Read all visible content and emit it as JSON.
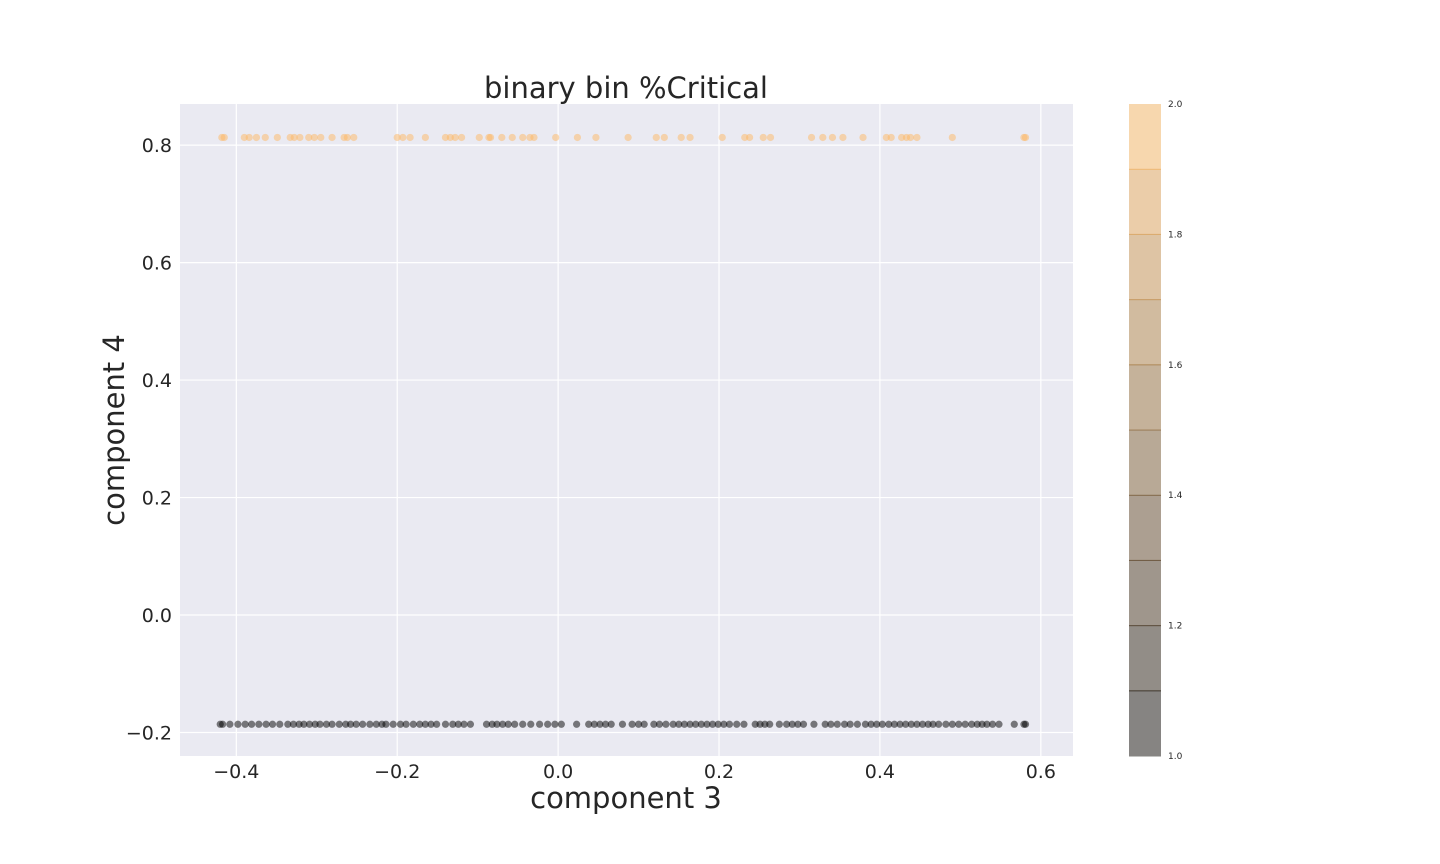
{
  "chart_data": {
    "type": "scatter",
    "title": "binary bin %Critical",
    "xlabel": "component 3",
    "ylabel": "component 4",
    "xlim": [
      -0.47,
      0.64
    ],
    "ylim": [
      -0.24,
      0.87
    ],
    "xticks": [
      -0.4,
      -0.2,
      0.0,
      0.2,
      0.4,
      0.6
    ],
    "xtick_labels": [
      "−0.4",
      "−0.2",
      "0.0",
      "0.2",
      "0.4",
      "0.6"
    ],
    "yticks": [
      -0.2,
      0.0,
      0.2,
      0.4,
      0.6,
      0.8
    ],
    "ytick_labels": [
      "−0.2",
      "0.0",
      "0.2",
      "0.4",
      "0.6",
      "0.8"
    ],
    "grid": true,
    "colorbar": {
      "min": 1.0,
      "max": 2.0,
      "ticks": [
        1.0,
        1.2,
        1.4,
        1.6,
        1.8,
        2.0
      ],
      "tick_labels": [
        "1.0",
        "1.2",
        "1.4",
        "1.6",
        "1.8",
        "2.0"
      ],
      "bands": 10,
      "colors": [
        "#000000",
        "#fdb863"
      ],
      "alpha": 0.5
    },
    "series": [
      {
        "color_value": 2.0,
        "color": "#fdb863",
        "y": 0.813,
        "x": [
          -0.418,
          -0.415,
          -0.39,
          -0.384,
          -0.375,
          -0.364,
          -0.349,
          -0.333,
          -0.328,
          -0.321,
          -0.31,
          -0.303,
          -0.295,
          -0.281,
          -0.266,
          -0.262,
          -0.254,
          -0.2,
          -0.193,
          -0.184,
          -0.165,
          -0.14,
          -0.134,
          -0.128,
          -0.12,
          -0.098,
          -0.086,
          -0.084,
          -0.07,
          -0.057,
          -0.044,
          -0.035,
          -0.03,
          -0.003,
          0.024,
          0.047,
          0.087,
          0.122,
          0.132,
          0.153,
          0.164,
          0.204,
          0.232,
          0.238,
          0.255,
          0.264,
          0.315,
          0.329,
          0.341,
          0.354,
          0.379,
          0.408,
          0.414,
          0.427,
          0.433,
          0.438,
          0.446,
          0.49,
          0.579,
          0.581
        ]
      },
      {
        "color_value": 1.0,
        "color": "#000000",
        "y": -0.186,
        "x": [
          -0.42,
          -0.417,
          -0.408,
          -0.398,
          -0.389,
          -0.381,
          -0.372,
          -0.363,
          -0.355,
          -0.346,
          -0.336,
          -0.329,
          -0.322,
          -0.316,
          -0.309,
          -0.302,
          -0.296,
          -0.288,
          -0.281,
          -0.272,
          -0.264,
          -0.258,
          -0.251,
          -0.243,
          -0.234,
          -0.226,
          -0.219,
          -0.214,
          -0.205,
          -0.196,
          -0.189,
          -0.18,
          -0.172,
          -0.165,
          -0.158,
          -0.151,
          -0.14,
          -0.131,
          -0.124,
          -0.117,
          -0.109,
          -0.089,
          -0.082,
          -0.076,
          -0.069,
          -0.062,
          -0.054,
          -0.044,
          -0.034,
          -0.023,
          -0.013,
          -0.004,
          0.004,
          0.023,
          0.038,
          0.045,
          0.052,
          0.059,
          0.066,
          0.08,
          0.092,
          0.1,
          0.107,
          0.119,
          0.126,
          0.134,
          0.143,
          0.15,
          0.157,
          0.164,
          0.171,
          0.178,
          0.185,
          0.192,
          0.199,
          0.206,
          0.213,
          0.222,
          0.231,
          0.245,
          0.251,
          0.257,
          0.263,
          0.275,
          0.284,
          0.291,
          0.298,
          0.305,
          0.318,
          0.332,
          0.339,
          0.347,
          0.356,
          0.363,
          0.372,
          0.382,
          0.389,
          0.396,
          0.403,
          0.411,
          0.418,
          0.425,
          0.432,
          0.439,
          0.446,
          0.453,
          0.46,
          0.466,
          0.473,
          0.482,
          0.49,
          0.498,
          0.506,
          0.514,
          0.521,
          0.527,
          0.533,
          0.54,
          0.548,
          0.567,
          0.579,
          0.581
        ]
      }
    ]
  }
}
